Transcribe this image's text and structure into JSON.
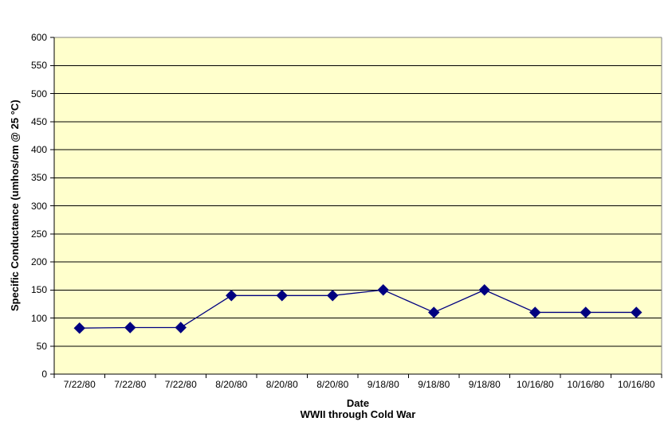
{
  "chart_data": {
    "type": "line",
    "title": "",
    "categories": [
      "7/22/80",
      "7/22/80",
      "7/22/80",
      "8/20/80",
      "8/20/80",
      "8/20/80",
      "9/18/80",
      "9/18/80",
      "9/18/80",
      "10/16/80",
      "10/16/80",
      "10/16/80"
    ],
    "series": [
      {
        "name": "Specific Conductance",
        "values": [
          82,
          83,
          83,
          140,
          140,
          140,
          150,
          110,
          150,
          110,
          110,
          110
        ]
      }
    ],
    "xlabel": "Date",
    "xlabel_sub": "WWII through Cold War",
    "ylabel": "Specific Conductance (umhos/cm @ 25 °C)",
    "ylim": [
      0,
      600
    ],
    "ytick_step": 50,
    "yticks": [
      0,
      50,
      100,
      150,
      200,
      250,
      300,
      350,
      400,
      450,
      500,
      550,
      600
    ],
    "grid": "horizontal",
    "legend": "none",
    "marker": "diamond",
    "colors": {
      "page_bg": "#FFFFFF",
      "plot_bg": "#FFFFCC",
      "series": "#000080",
      "gridline": "#000000",
      "plot_border": "#808080",
      "axis": "#000000",
      "text": "#000000"
    }
  }
}
